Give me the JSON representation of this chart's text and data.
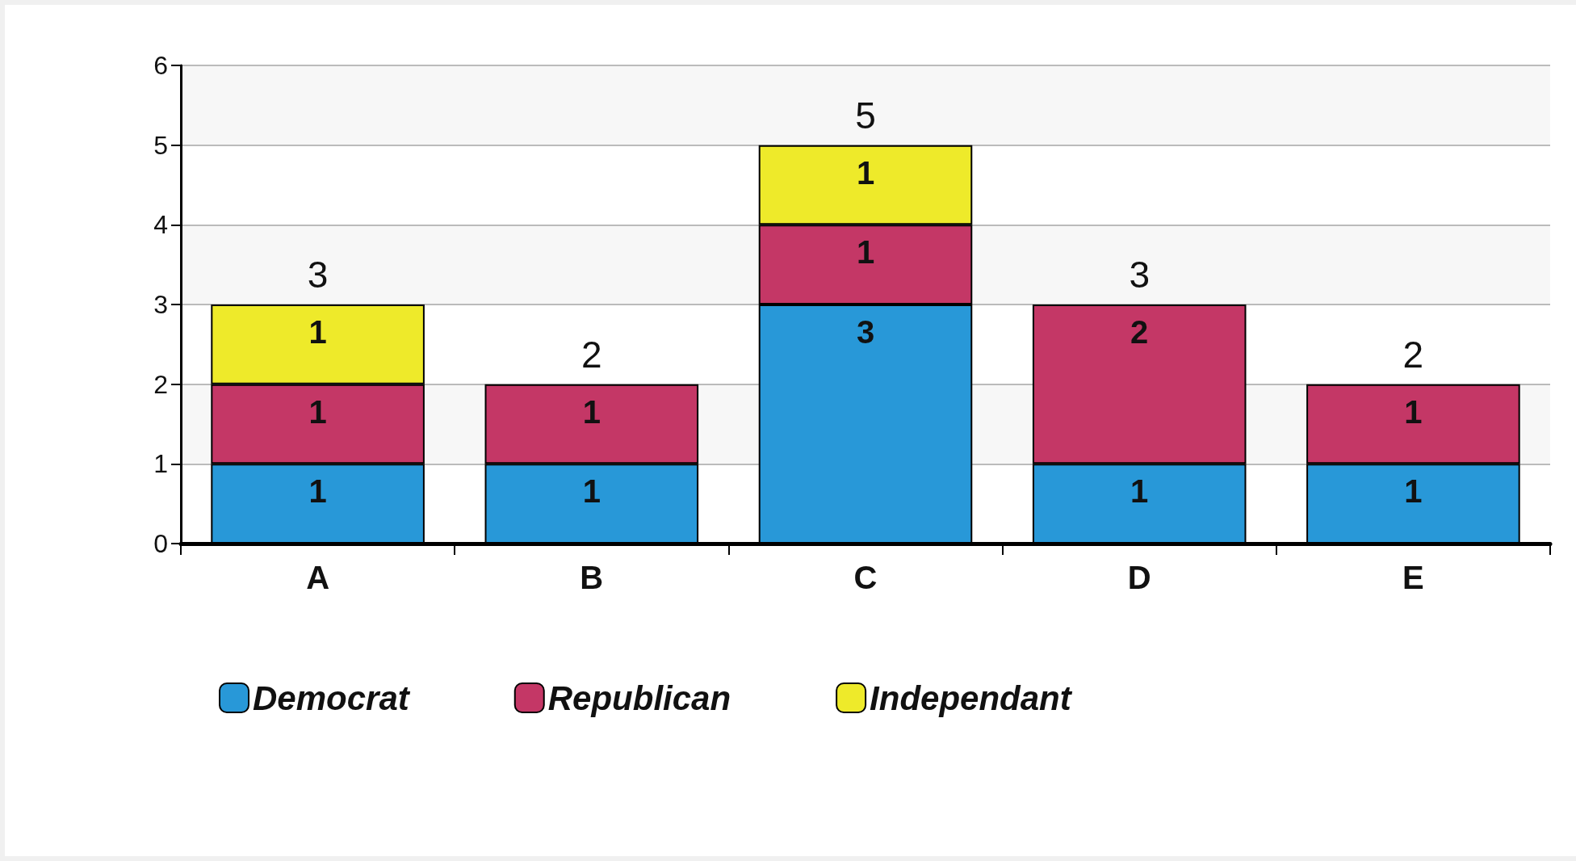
{
  "chart_data": {
    "type": "bar",
    "stacked": true,
    "categories": [
      "A",
      "B",
      "C",
      "D",
      "E"
    ],
    "series": [
      {
        "name": "Democrat",
        "color": "#2898d8",
        "values": [
          1,
          1,
          3,
          1,
          1
        ]
      },
      {
        "name": "Republican",
        "color": "#c43766",
        "values": [
          1,
          1,
          1,
          2,
          1
        ]
      },
      {
        "name": "Independant",
        "color": "#eeea2a",
        "values": [
          1,
          null,
          1,
          null,
          null
        ]
      }
    ],
    "ylim": [
      0,
      6
    ],
    "yticks": [
      0,
      1,
      2,
      3,
      4,
      5,
      6
    ],
    "grid": "y",
    "legend": "bottom",
    "data_labels": true,
    "totals": [
      "3",
      "2",
      "5",
      "3",
      "2"
    ]
  }
}
